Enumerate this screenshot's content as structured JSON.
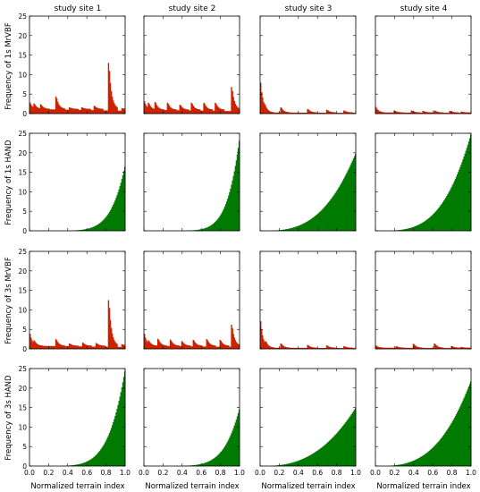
{
  "columns": [
    "study site 1",
    "study site 2",
    "study site 3",
    "study site 4"
  ],
  "rows": [
    "Frequency of 1s MrVBF",
    "Frequency of 1s HAND",
    "Frequency of 3s MrVBF",
    "Frequency of 3s HAND"
  ],
  "xlabel": "Normalized terrain index",
  "colors": {
    "mrvbf": "#cc2200",
    "hand": "#007a00",
    "frame": "#000000"
  },
  "chart_data": {
    "type": "bar",
    "layout": "4x4 small multiples (histograms)",
    "x_ticks": [
      "0.0",
      "0.2",
      "0.4",
      "0.6",
      "0.8",
      "1.0"
    ],
    "y_ticks": [
      "0",
      "5",
      "10",
      "15",
      "20",
      "25"
    ],
    "xlim": [
      0,
      1
    ],
    "ylim": [
      0,
      25
    ],
    "grid": false,
    "panels": [
      {
        "row": "Frequency of 1s MrVBF",
        "col": "study site 1",
        "kind": "mrvbf",
        "base": 1.2,
        "peaks": [
          [
            0.0,
            3.2
          ],
          [
            0.05,
            2.6
          ],
          [
            0.12,
            2.4
          ],
          [
            0.28,
            4.4
          ],
          [
            0.42,
            1.6
          ],
          [
            0.55,
            1.6
          ],
          [
            0.68,
            2.0
          ],
          [
            0.83,
            13.0
          ],
          [
            0.97,
            1.4
          ]
        ]
      },
      {
        "row": "Frequency of 1s MrVBF",
        "col": "study site 2",
        "kind": "mrvbf",
        "base": 1.0,
        "peaks": [
          [
            0.0,
            3.6
          ],
          [
            0.05,
            2.8
          ],
          [
            0.12,
            3.0
          ],
          [
            0.25,
            2.8
          ],
          [
            0.38,
            2.3
          ],
          [
            0.5,
            2.8
          ],
          [
            0.63,
            2.8
          ],
          [
            0.75,
            2.8
          ],
          [
            0.92,
            6.8
          ]
        ]
      },
      {
        "row": "Frequency of 1s MrVBF",
        "col": "study site 3",
        "kind": "mrvbf",
        "base": 0.3,
        "peaks": [
          [
            0.0,
            9.5
          ],
          [
            0.02,
            5.0
          ],
          [
            0.05,
            2.5
          ],
          [
            0.22,
            1.6
          ],
          [
            0.5,
            1.2
          ],
          [
            0.7,
            1.0
          ],
          [
            0.88,
            0.8
          ]
        ]
      },
      {
        "row": "Frequency of 1s MrVBF",
        "col": "study site 4",
        "kind": "mrvbf",
        "base": 0.3,
        "peaks": [
          [
            0.0,
            2.0
          ],
          [
            0.2,
            0.8
          ],
          [
            0.38,
            0.8
          ],
          [
            0.5,
            0.7
          ],
          [
            0.62,
            0.8
          ],
          [
            0.78,
            0.7
          ],
          [
            0.9,
            0.5
          ]
        ]
      },
      {
        "row": "Frequency of 1s HAND",
        "col": "study site 1",
        "kind": "hand",
        "start": 0.55,
        "end": 17.0,
        "pow": 7.0,
        "ranges": [
          0.0,
          1.0
        ]
      },
      {
        "row": "Frequency of 1s HAND",
        "col": "study site 2",
        "kind": "hand",
        "start": 0.5,
        "end": 24.0,
        "pow": 8.0,
        "ranges": [
          0.0,
          1.0
        ]
      },
      {
        "row": "Frequency of 1s HAND",
        "col": "study site 3",
        "kind": "hand",
        "start": 0.25,
        "end": 20.0,
        "pow": 3.0,
        "ranges": [
          0.0,
          1.0
        ]
      },
      {
        "row": "Frequency of 1s HAND",
        "col": "study site 4",
        "kind": "hand",
        "start": 0.3,
        "end": 25.0,
        "pow": 3.5,
        "ranges": [
          0.0,
          1.0
        ]
      },
      {
        "row": "Frequency of 3s MrVBF",
        "col": "study site 1",
        "kind": "mrvbf",
        "base": 0.8,
        "peaks": [
          [
            0.0,
            4.5
          ],
          [
            0.05,
            2.2
          ],
          [
            0.28,
            2.5
          ],
          [
            0.42,
            1.4
          ],
          [
            0.56,
            1.6
          ],
          [
            0.7,
            1.5
          ],
          [
            0.83,
            12.5
          ],
          [
            0.97,
            1.2
          ]
        ]
      },
      {
        "row": "Frequency of 3s MrVBF",
        "col": "study site 2",
        "kind": "mrvbf",
        "base": 0.8,
        "peaks": [
          [
            0.0,
            4.5
          ],
          [
            0.05,
            2.2
          ],
          [
            0.15,
            2.6
          ],
          [
            0.28,
            2.4
          ],
          [
            0.4,
            2.0
          ],
          [
            0.52,
            2.3
          ],
          [
            0.66,
            2.5
          ],
          [
            0.8,
            2.3
          ],
          [
            0.92,
            6.2
          ]
        ]
      },
      {
        "row": "Frequency of 3s MrVBF",
        "col": "study site 3",
        "kind": "mrvbf",
        "base": 0.3,
        "peaks": [
          [
            0.0,
            8.5
          ],
          [
            0.02,
            4.0
          ],
          [
            0.06,
            2.0
          ],
          [
            0.22,
            1.4
          ],
          [
            0.5,
            1.0
          ],
          [
            0.7,
            0.9
          ],
          [
            0.88,
            0.7
          ]
        ]
      },
      {
        "row": "Frequency of 3s MrVBF",
        "col": "study site 4",
        "kind": "mrvbf",
        "base": 0.3,
        "peaks": [
          [
            0.0,
            1.0
          ],
          [
            0.22,
            0.7
          ],
          [
            0.4,
            1.3
          ],
          [
            0.62,
            1.4
          ],
          [
            0.8,
            0.7
          ],
          [
            0.9,
            0.5
          ]
        ]
      },
      {
        "row": "Frequency of 3s HAND",
        "col": "study site 1",
        "kind": "hand",
        "start": 0.4,
        "end": 25.0,
        "pow": 6.0,
        "ranges": [
          0.0,
          1.0
        ]
      },
      {
        "row": "Frequency of 3s HAND",
        "col": "study site 2",
        "kind": "hand",
        "start": 0.4,
        "end": 15.0,
        "pow": 6.5,
        "ranges": [
          0.0,
          1.0
        ]
      },
      {
        "row": "Frequency of 3s HAND",
        "col": "study site 3",
        "kind": "hand",
        "start": 0.2,
        "end": 15.0,
        "pow": 2.6,
        "ranges": [
          0.0,
          1.0
        ]
      },
      {
        "row": "Frequency of 3s HAND",
        "col": "study site 4",
        "kind": "hand",
        "start": 0.2,
        "end": 22.0,
        "pow": 3.0,
        "ranges": [
          0.0,
          1.0
        ]
      }
    ]
  }
}
